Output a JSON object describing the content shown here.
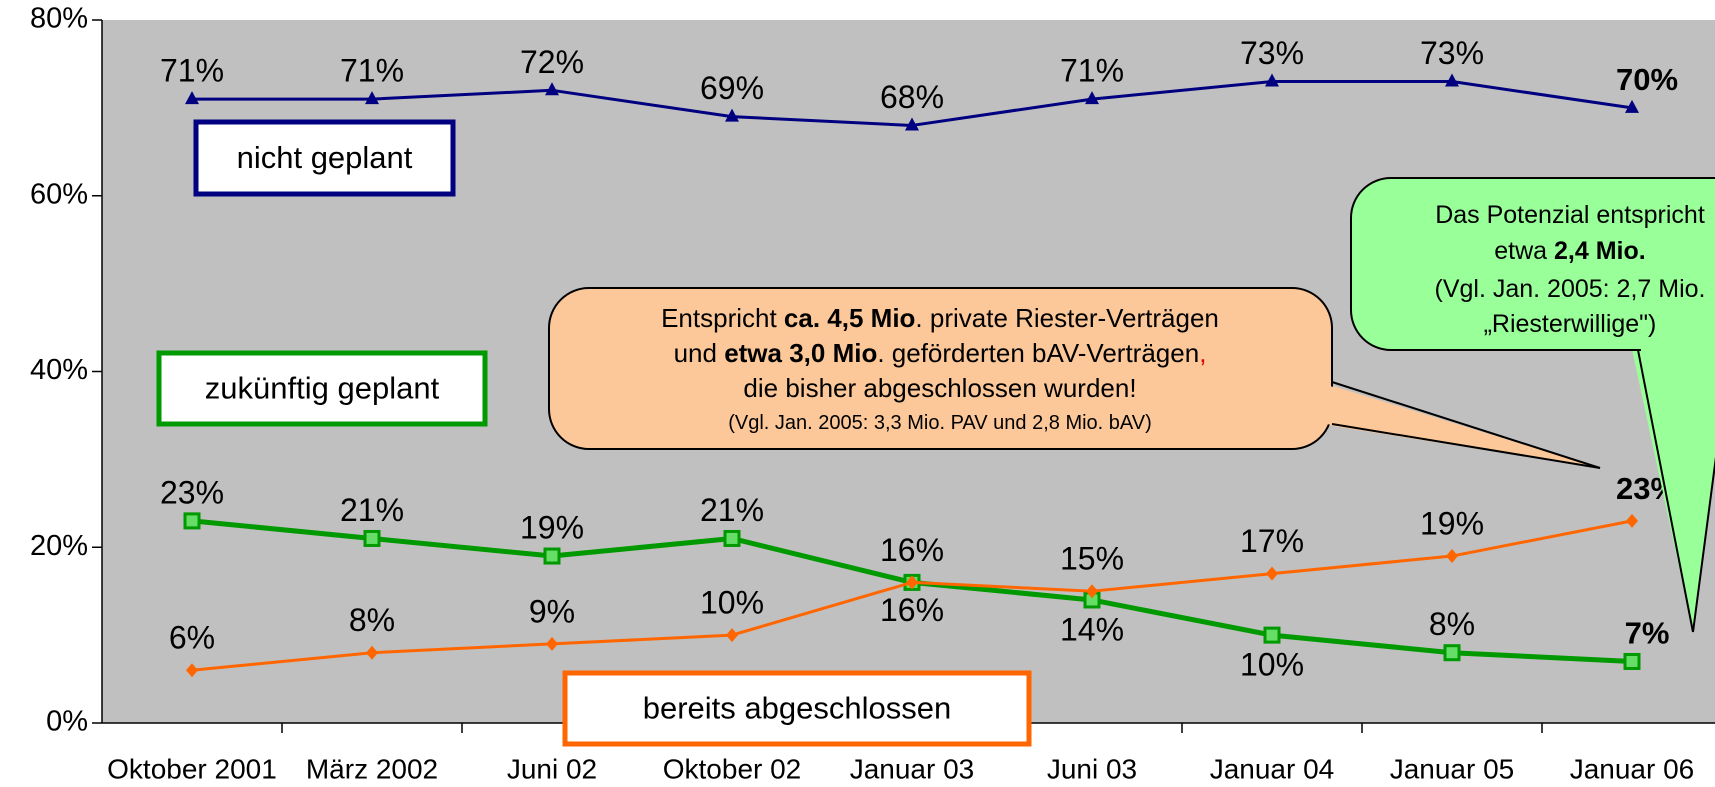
{
  "chart_data": {
    "type": "line",
    "categories": [
      "Oktober 2001",
      "März 2002",
      "Juni 02",
      "Oktober 02",
      "Januar 03",
      "Juni 03",
      "Januar 04",
      "Januar 05",
      "Januar 06"
    ],
    "ylim": [
      0,
      80
    ],
    "yticks": [
      {
        "value": 0,
        "label": "0%"
      },
      {
        "value": 20,
        "label": "20%"
      },
      {
        "value": 40,
        "label": "40%"
      },
      {
        "value": 60,
        "label": "60%"
      },
      {
        "value": 80,
        "label": "80%"
      }
    ],
    "background": "#c0c0c0",
    "series": [
      {
        "name": "nicht geplant",
        "color": "#000080",
        "marker": "triangle",
        "values": [
          71,
          71,
          72,
          69,
          68,
          71,
          73,
          73,
          70
        ],
        "value_labels": [
          "71%",
          "71%",
          "72%",
          "69%",
          "68%",
          "71%",
          "73%",
          "73%",
          "70%"
        ]
      },
      {
        "name": "zukünftig geplant",
        "color": "#009900",
        "marker": "square",
        "values": [
          23,
          21,
          19,
          21,
          16,
          14,
          10,
          8,
          7
        ],
        "value_labels": [
          "23%",
          "21%",
          "19%",
          "21%",
          "16%",
          "14%",
          "10%",
          "8%",
          "7%"
        ]
      },
      {
        "name": "bereits abgeschlossen",
        "color": "#ff6600",
        "marker": "diamond",
        "values": [
          6,
          8,
          9,
          10,
          16,
          15,
          17,
          19,
          23
        ],
        "value_labels": [
          "6%",
          "8%",
          "9%",
          "10%",
          "16%",
          "15%",
          "17%",
          "19%",
          "23%"
        ]
      }
    ],
    "annotations": [
      {
        "lines": [
          [
            "Entspricht ",
            "ca. 4,5 Mio",
            ". private Riester-Verträgen"
          ],
          [
            "und ",
            "etwa 3,0 Mio",
            ". geförderten bAV-Verträgen",
            ","
          ],
          [
            "die bisher abgeschlossen wurden!"
          ],
          [
            "(Vgl. Jan. 2005: 3,3 Mio. PAV  und 2,8 Mio. bAV)"
          ]
        ]
      },
      {
        "lines": [
          [
            "Das Potenzial entspricht"
          ],
          [
            "etwa ",
            "2,4 Mio."
          ],
          [
            "(Vgl. Jan. 2005: 2,7 Mio."
          ],
          [
            "„Riesterwillige\")"
          ]
        ]
      }
    ]
  }
}
